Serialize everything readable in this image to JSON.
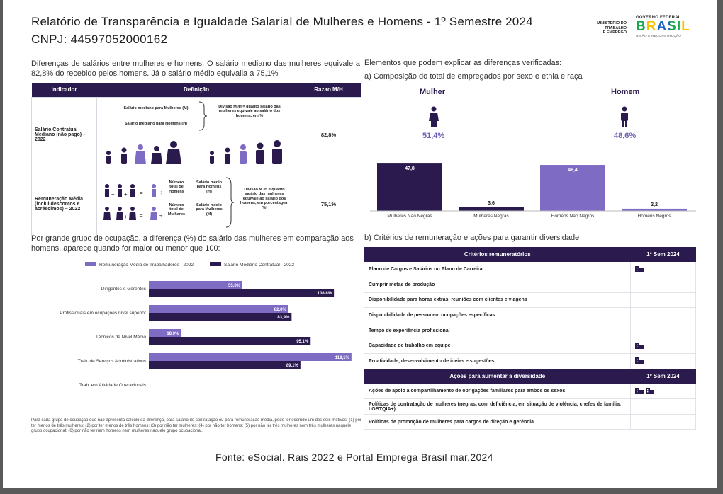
{
  "header": {
    "title": "Relatório de Transparência e Igualdade Salarial de Mulheres e Homens - 1º Semestre 2024",
    "cnpj": "CNPJ: 44597052000162"
  },
  "logos": {
    "ministry_1": "MINISTÉRIO DO",
    "ministry_2": "TRABALHO",
    "ministry_3": "E EMPREGO",
    "ministry_4": "",
    "gov_top": "GOVERNO FEDERAL",
    "gov_main": "BRASIL",
    "gov_bottom": "UNIÃO E RECONSTRUÇÃO"
  },
  "intro": "Diferenças de salários entre mulheres e homens: O salário mediano das mulheres equivale a 82,8% do recebido pelos homens. Já o salário médio equivalia a 75,1%",
  "elements_heading": "Elementos que podem explicar as diferenças verificadas:",
  "indicators": {
    "headers": [
      "Indicador",
      "Definição",
      "Razao M/H"
    ],
    "rows": [
      {
        "name": "Salário Contratual Mediano (não pago) – 2022",
        "value": "82,8%",
        "def": {
          "num": "Salário mediano para Mulheres (M)",
          "den": "Salário mediano para Homens (H)",
          "desc": "Divisão M /H = quanto salário das mulheres equivale ao salário dos homens, em %"
        }
      },
      {
        "name": "Remuneração Média (inclui descontos e acréscimos) – 2022",
        "value": "75,1%",
        "def": {
          "a": "Número total de Homens",
          "b": "Salário médio para Homens (H)",
          "c": "Número total de Mulheres",
          "d": "Salário médio para Mulheres (M)",
          "desc": "Divisão M /H = quanto salário das mulheres equivale ao salário dos homens, em porcentagem (%)"
        }
      }
    ]
  },
  "section_a": {
    "heading": "a) Composição do total de empregados por sexo e etnia e raça",
    "women_label": "Mulher",
    "men_label": "Homem",
    "women_pct": "51,4%",
    "men_pct": "48,6%"
  },
  "colors": {
    "dark": "#2b1a4e",
    "light": "#7e6bc4"
  },
  "chart_data": [
    {
      "type": "bar",
      "categories": [
        "Mulheres Não Negras",
        "Mulheres Negras",
        "Homens Não Negros",
        "Homens Negros"
      ],
      "values": [
        47.8,
        3.6,
        46.4,
        2.2
      ],
      "labels": [
        "47,8",
        "3,6",
        "46,4",
        "2,2"
      ],
      "colors": [
        "#2b1a4e",
        "#2b1a4e",
        "#7e6bc4",
        "#7e6bc4"
      ],
      "ylim": [
        0,
        50
      ]
    },
    {
      "type": "bar",
      "orientation": "horizontal",
      "categories": [
        "Dirigentes e Gerentes",
        "Profissionais em ocupações nível superior",
        "Técnicos de Nível Médio",
        "Trab. de Serviços Administrativos",
        "Trab. em Atividade Operacionais"
      ],
      "series": [
        {
          "name": "Remuneração Média de Trabalhadores - 2022",
          "values": [
            55.0,
            82.0,
            18.9,
            119.1,
            null
          ],
          "labels": [
            "55,0%",
            "82,0%",
            "18,9%",
            "119,1%",
            ""
          ]
        },
        {
          "name": "Salário Mediano Contratual - 2022",
          "values": [
            108.8,
            83.9,
            95.1,
            89.1,
            null
          ],
          "labels": [
            "108,8%",
            "83,9%",
            "95,1%",
            "89,1%",
            ""
          ]
        }
      ],
      "xlim": [
        0,
        125
      ]
    }
  ],
  "occupation": {
    "heading": "Por grande grupo de ocupação, a diferença (%) do salário das mulheres em comparação aos homens, aparece quando for maior ou menor que 100:",
    "note": "Para cada grupo de ocupação que não apresenta cálculo da diferença, para salário de contratação ou para remuneração média, pode ter ocorrido um dos seis motivos: (1) por ter menos de três mulheres; (2) por ter menos de três homens; (3) por não ter mulheres; (4) por não ter homens; (5) por não ter três mulheres nem três mulheres naquele grupo ocupacional; (6) por não ter nem homens nem mulheres naquele grupo ocupacional."
  },
  "section_b": {
    "heading": "b) Critérios de remuneração e ações para garantir diversidade",
    "criteria_header": "Critérios remuneratórios",
    "actions_header": "Ações para aumentar a diversidade",
    "sem_header": "1º Sem 2024",
    "criteria": [
      {
        "label": "Plano de Cargos e Salários ou Plano de Carreira",
        "icons": 1
      },
      {
        "label": "Cumprir metas de produção",
        "icons": 0
      },
      {
        "label": "Disponibilidade para horas extras, reuniões com clientes e viagens",
        "icons": 0
      },
      {
        "label": "Disponibilidade de pessoa em ocupações específicas",
        "icons": 0
      },
      {
        "label": "Tempo de experiência profissional",
        "icons": 0
      },
      {
        "label": "Capacidade de trabalho em equipe",
        "icons": 1
      },
      {
        "label": "Proatividade, desenvolvimento de ideias e sugestões",
        "icons": 1
      }
    ],
    "actions": [
      {
        "label": "Ações de apoio a compartilhamento de obrigações familiares para ambos os sexos",
        "icons": 2
      },
      {
        "label": "Políticas de contratação de mulheres (negras, com deficiência, em situação de violência, chefes de família, LGBTQIA+)",
        "icons": 0
      },
      {
        "label": "Políticas de promoção de mulheres para cargos de direção e gerência",
        "icons": 0
      }
    ]
  },
  "footer": {
    "source": "Fonte: eSocial. Rais 2022 e Portal Emprega Brasil mar.2024"
  }
}
